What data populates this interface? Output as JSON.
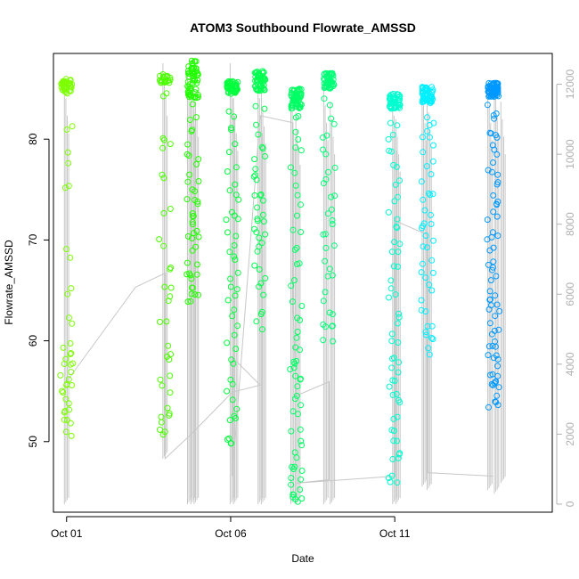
{
  "chart_data": {
    "type": "scatter",
    "title": "ATOM3 Southbound Flowrate_AMSSD",
    "xlabel": "Date",
    "ylabel": "Flowrate_AMSSD",
    "x_ticks": [
      "Oct 01",
      "Oct 06",
      "Oct 11"
    ],
    "x_tick_days": [
      1,
      6,
      11
    ],
    "xlim": [
      0.6,
      15.8
    ],
    "ylim": [
      43.0,
      88.5
    ],
    "y_ticks": [
      50,
      60,
      70,
      80
    ],
    "y2_ticks": [
      0,
      2000,
      4000,
      6000,
      8000,
      10000,
      12000
    ],
    "y2lim": [
      -230,
      12880
    ],
    "grid": false,
    "colors": {
      "line": "#c8c8c8",
      "axis": "#000000",
      "axis_right": "#b0b0b0"
    },
    "point_clusters": [
      {
        "day": 1.0,
        "color": "#7dff00",
        "top": [
          84.5,
          86.0
        ],
        "count": 40,
        "samples": [
          81.3,
          78.2,
          75.0,
          68.5,
          65.0,
          62.2,
          59.8,
          59.0,
          58.3,
          57.4,
          56.8,
          56.0,
          55.4,
          54.8,
          54.0,
          53.2,
          52.6,
          51.8,
          51.0
        ]
      },
      {
        "day": 4.0,
        "color": "#4cff00",
        "top": [
          85.5,
          86.5
        ],
        "count": 20,
        "samples": [
          84.3,
          80.0,
          79.0,
          76.0,
          73.2,
          69.5,
          67.5,
          65.0,
          64.2,
          61.8,
          59.0,
          58.4,
          56.5,
          55.2,
          53.0,
          52.2,
          51.6,
          51.0
        ]
      },
      {
        "day": 4.85,
        "color": "#22ff00",
        "top": [
          84.0,
          87.8
        ],
        "count": 55,
        "samples": [
          85.0,
          83.8,
          82.5,
          81.0,
          79.0,
          78.0,
          77.0,
          76.0,
          75.0,
          74.0,
          73.5,
          72.8,
          72.0,
          71.0,
          70.3,
          69.8,
          69.2,
          68.0,
          67.0,
          66.2,
          65.6,
          65.0,
          64.3,
          63.6
        ]
      },
      {
        "day": 6.05,
        "color": "#00ff3c",
        "top": [
          84.5,
          85.8
        ],
        "count": 45,
        "samples": [
          82.5,
          81.0,
          79.0,
          77.0,
          75.5,
          74.0,
          72.8,
          71.5,
          70.2,
          69.0,
          67.8,
          66.5,
          65.2,
          64.0,
          62.5,
          61.0,
          59.5,
          58.0,
          56.2,
          54.5,
          53.0,
          51.8,
          50.0,
          49.8
        ]
      },
      {
        "day": 6.9,
        "color": "#00ff50",
        "top": [
          84.8,
          86.8
        ],
        "count": 50,
        "samples": [
          83.0,
          81.0,
          79.0,
          78.0,
          77.0,
          76.0,
          75.0,
          74.0,
          73.0,
          72.3,
          71.6,
          70.8,
          69.8,
          68.8,
          67.5,
          66.0,
          64.8,
          63.0,
          61.5
        ]
      },
      {
        "day": 8.0,
        "color": "#00ff64",
        "top": [
          83.0,
          85.0
        ],
        "count": 60,
        "samples": [
          82.0,
          80.5,
          79.0,
          77.0,
          75.0,
          73.0,
          71.0,
          69.0,
          67.5,
          65.5,
          63.8,
          62.2,
          60.5,
          59.0,
          58.2,
          57.5,
          56.8,
          56.0,
          55.0,
          54.0,
          52.8,
          51.5,
          50.2,
          49.0,
          48.0,
          47.0,
          46.2,
          45.5,
          44.8,
          44.2,
          43.8
        ]
      },
      {
        "day": 9.0,
        "color": "#00ff78",
        "top": [
          85.0,
          86.6
        ],
        "count": 50,
        "samples": [
          83.8,
          82.0,
          80.0,
          78.5,
          77.0,
          75.5,
          74.0,
          73.0,
          71.8,
          70.6,
          69.0,
          67.5,
          66.0,
          64.5,
          63.2,
          62.0,
          61.0,
          60.5
        ]
      },
      {
        "day": 11.0,
        "color": "#00ffd0",
        "top": [
          83.0,
          84.5
        ],
        "count": 55,
        "samples": [
          81.0,
          80.0,
          78.5,
          77.0,
          75.5,
          74.0,
          72.5,
          71.0,
          69.8,
          68.5,
          67.0,
          65.5,
          64.0,
          62.5,
          61.2,
          60.0,
          58.8,
          57.6,
          56.5,
          55.5,
          54.5,
          53.5,
          52.2,
          51.0,
          50.0,
          49.0,
          48.0,
          47.0,
          46.2
        ]
      },
      {
        "day": 12.0,
        "color": "#00f0ff",
        "top": [
          83.5,
          85.2
        ],
        "count": 60,
        "samples": [
          82.0,
          81.0,
          80.0,
          79.0,
          77.5,
          76.0,
          75.0,
          74.0,
          73.0,
          72.0,
          71.0,
          70.0,
          69.0,
          68.0,
          67.0,
          66.0,
          64.5,
          63.0,
          62.0,
          61.0,
          60.0,
          59.0
        ]
      },
      {
        "day": 14.0,
        "color": "#0099ff",
        "top": [
          84.2,
          85.6
        ],
        "count": 70,
        "samples": [
          83.0,
          82.0,
          81.0,
          80.0,
          79.0,
          78.0,
          77.0,
          76.0,
          75.0,
          74.0,
          73.0,
          72.0,
          71.0,
          70.0,
          69.0,
          68.0,
          67.0,
          66.0,
          65.0,
          64.0,
          63.5,
          63.0,
          62.0,
          61.0,
          60.5,
          60.0,
          59.0,
          58.5,
          58.0,
          57.0,
          56.5,
          56.0,
          55.5,
          55.0,
          54.0,
          53.5
        ]
      }
    ],
    "secondary_series": {
      "name": "",
      "axis": "right",
      "path": [
        [
          1.0,
          3500
        ],
        [
          3.1,
          6200
        ],
        [
          4.0,
          6600
        ],
        [
          4.0,
          1300
        ],
        [
          4.8,
          2000
        ],
        [
          6.05,
          3200
        ],
        [
          6.9,
          3400
        ],
        [
          6.05,
          4200
        ],
        [
          6.05,
          800
        ],
        [
          6.9,
          11100
        ],
        [
          7.9,
          10900
        ],
        [
          7.9,
          5600
        ],
        [
          8.0,
          3100
        ],
        [
          9.0,
          3500
        ],
        [
          9.0,
          700
        ],
        [
          8.0,
          600
        ],
        [
          11.0,
          800
        ],
        [
          11.0,
          8100
        ],
        [
          12.0,
          7700
        ],
        [
          12.0,
          900
        ],
        [
          14.0,
          800
        ]
      ],
      "spikes": [
        {
          "day": 1.0,
          "low": 0,
          "high": 12100
        },
        {
          "day": 4.0,
          "low": 1300,
          "high": 12600
        },
        {
          "day": 4.75,
          "low": 0,
          "high": 12400
        },
        {
          "day": 4.85,
          "low": 0,
          "high": 12300
        },
        {
          "day": 4.95,
          "low": 0,
          "high": 12000
        },
        {
          "day": 6.05,
          "low": 0,
          "high": 12600
        },
        {
          "day": 6.15,
          "low": 0,
          "high": 11600
        },
        {
          "day": 6.9,
          "low": 0,
          "high": 12100
        },
        {
          "day": 7.0,
          "low": 0,
          "high": 11800
        },
        {
          "day": 7.9,
          "low": 0,
          "high": 11700
        },
        {
          "day": 8.05,
          "low": 0,
          "high": 11200
        },
        {
          "day": 8.9,
          "low": 0,
          "high": 11900
        },
        {
          "day": 9.1,
          "low": 0,
          "high": 11500
        },
        {
          "day": 11.0,
          "low": 0,
          "high": 11600
        },
        {
          "day": 11.1,
          "low": 0,
          "high": 11000
        },
        {
          "day": 11.9,
          "low": 500,
          "high": 11900
        },
        {
          "day": 12.05,
          "low": 400,
          "high": 11700
        },
        {
          "day": 13.9,
          "low": 400,
          "high": 11900
        },
        {
          "day": 14.1,
          "low": 300,
          "high": 12100
        },
        {
          "day": 14.3,
          "low": 600,
          "high": 11500
        }
      ]
    }
  }
}
